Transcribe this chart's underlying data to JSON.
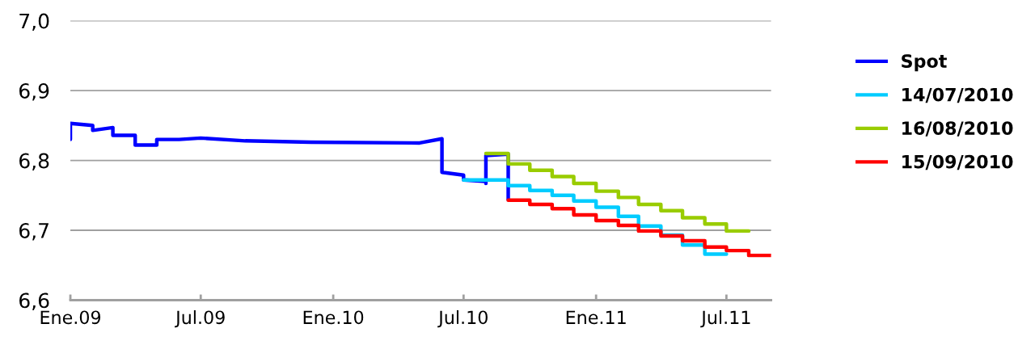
{
  "chart_data": {
    "type": "line",
    "ylim": [
      6.6,
      7.0
    ],
    "yticks": [
      {
        "value": 6.6,
        "label": "6,6"
      },
      {
        "value": 6.7,
        "label": "6,7"
      },
      {
        "value": 6.8,
        "label": "6,8"
      },
      {
        "value": 6.9,
        "label": "6,9"
      },
      {
        "value": 7.0,
        "label": "7,0"
      }
    ],
    "xlim": [
      "2009-01-01",
      "2011-09-01"
    ],
    "xticks": [
      {
        "value": "2009-01-01",
        "label": "Ene.09"
      },
      {
        "value": "2009-07-01",
        "label": "Jul.09"
      },
      {
        "value": "2010-01-01",
        "label": "Ene.10"
      },
      {
        "value": "2010-07-01",
        "label": "Jul.10"
      },
      {
        "value": "2011-01-01",
        "label": "Ene.11"
      },
      {
        "value": "2011-07-01",
        "label": "Jul.11"
      }
    ],
    "grid": "y",
    "legend": "right",
    "line_style": "solid",
    "marker": "none",
    "series": [
      {
        "name": "Spot",
        "color": "#0000ff",
        "x": [
          "2009-01-01",
          "2009-01-01",
          "2009-02-01",
          "2009-02-01",
          "2009-03-01",
          "2009-03-01",
          "2009-04-01",
          "2009-04-01",
          "2009-05-01",
          "2009-05-01",
          "2009-06-01",
          "2009-07-01",
          "2009-09-01",
          "2009-12-01",
          "2010-05-01",
          "2010-06-01",
          "2010-06-01",
          "2010-07-01",
          "2010-07-01",
          "2010-08-01",
          "2010-08-01",
          "2010-08-01",
          "2010-09-01",
          "2010-09-01"
        ],
        "values": [
          6.83,
          6.853,
          6.85,
          6.843,
          6.847,
          6.836,
          6.836,
          6.822,
          6.822,
          6.83,
          6.83,
          6.832,
          6.828,
          6.826,
          6.825,
          6.831,
          6.783,
          6.779,
          6.772,
          6.77,
          6.767,
          6.807,
          6.809,
          6.744
        ]
      },
      {
        "name": "14/07/2010",
        "color": "#00ccff",
        "type": "step",
        "x": [
          "2010-07-01",
          "2010-09-01",
          "2010-10-01",
          "2010-11-01",
          "2010-12-01",
          "2011-01-01",
          "2011-02-01",
          "2011-03-01",
          "2011-04-01",
          "2011-05-01",
          "2011-06-01",
          "2011-07-01"
        ],
        "values": [
          6.772,
          6.764,
          6.757,
          6.75,
          6.742,
          6.733,
          6.72,
          6.706,
          6.693,
          6.679,
          6.666,
          6.666
        ]
      },
      {
        "name": "16/08/2010",
        "color": "#99cc00",
        "type": "step",
        "x": [
          "2010-08-01",
          "2010-09-01",
          "2010-10-01",
          "2010-11-01",
          "2010-12-01",
          "2011-01-01",
          "2011-02-01",
          "2011-03-01",
          "2011-04-01",
          "2011-05-01",
          "2011-06-01",
          "2011-07-01",
          "2011-08-01"
        ],
        "values": [
          6.81,
          6.795,
          6.786,
          6.777,
          6.767,
          6.756,
          6.747,
          6.737,
          6.728,
          6.718,
          6.709,
          6.699,
          6.699
        ]
      },
      {
        "name": "15/09/2010",
        "color": "#ff0000",
        "type": "step",
        "x": [
          "2010-09-01",
          "2010-10-01",
          "2010-11-01",
          "2010-12-01",
          "2011-01-01",
          "2011-02-01",
          "2011-03-01",
          "2011-04-01",
          "2011-05-01",
          "2011-06-01",
          "2011-07-01",
          "2011-08-01",
          "2011-09-01"
        ],
        "values": [
          6.743,
          6.737,
          6.731,
          6.722,
          6.714,
          6.707,
          6.699,
          6.692,
          6.685,
          6.676,
          6.671,
          6.664,
          6.664
        ]
      }
    ]
  }
}
